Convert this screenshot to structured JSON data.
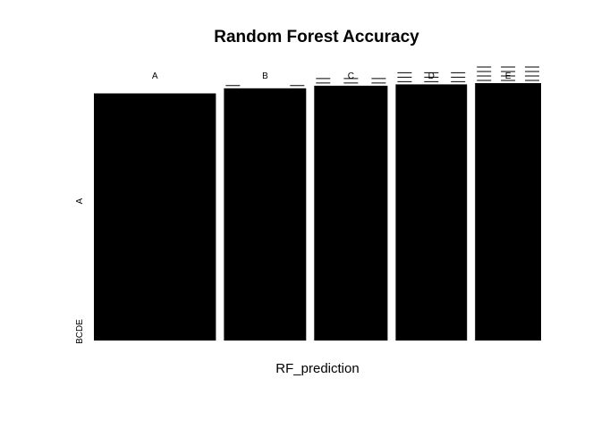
{
  "chart_data": {
    "type": "mosaic",
    "title": "Random Forest Accuracy",
    "xlabel": "RF_prediction",
    "ylabel": "",
    "x_categories": [
      "A",
      "B",
      "C",
      "D",
      "E"
    ],
    "y_categories": [
      "A",
      "B",
      "C",
      "D",
      "E"
    ],
    "y_tick_labels": [
      "A",
      "BCDE"
    ],
    "column_weights": [
      0.294,
      0.198,
      0.177,
      0.172,
      0.159
    ],
    "cell_proportions": [
      [
        0.96,
        0.01,
        0.01,
        0.01,
        0.01
      ],
      [
        0.98,
        0.005,
        0.005,
        0.005,
        0.005
      ],
      [
        0.99,
        0.0025,
        0.0025,
        0.0025,
        0.0025
      ],
      [
        0.995,
        0.00125,
        0.00125,
        0.00125,
        0.00125
      ],
      [
        1.0,
        0.0,
        0.0,
        0.0,
        0.0
      ]
    ],
    "fill_color": "#000000"
  }
}
